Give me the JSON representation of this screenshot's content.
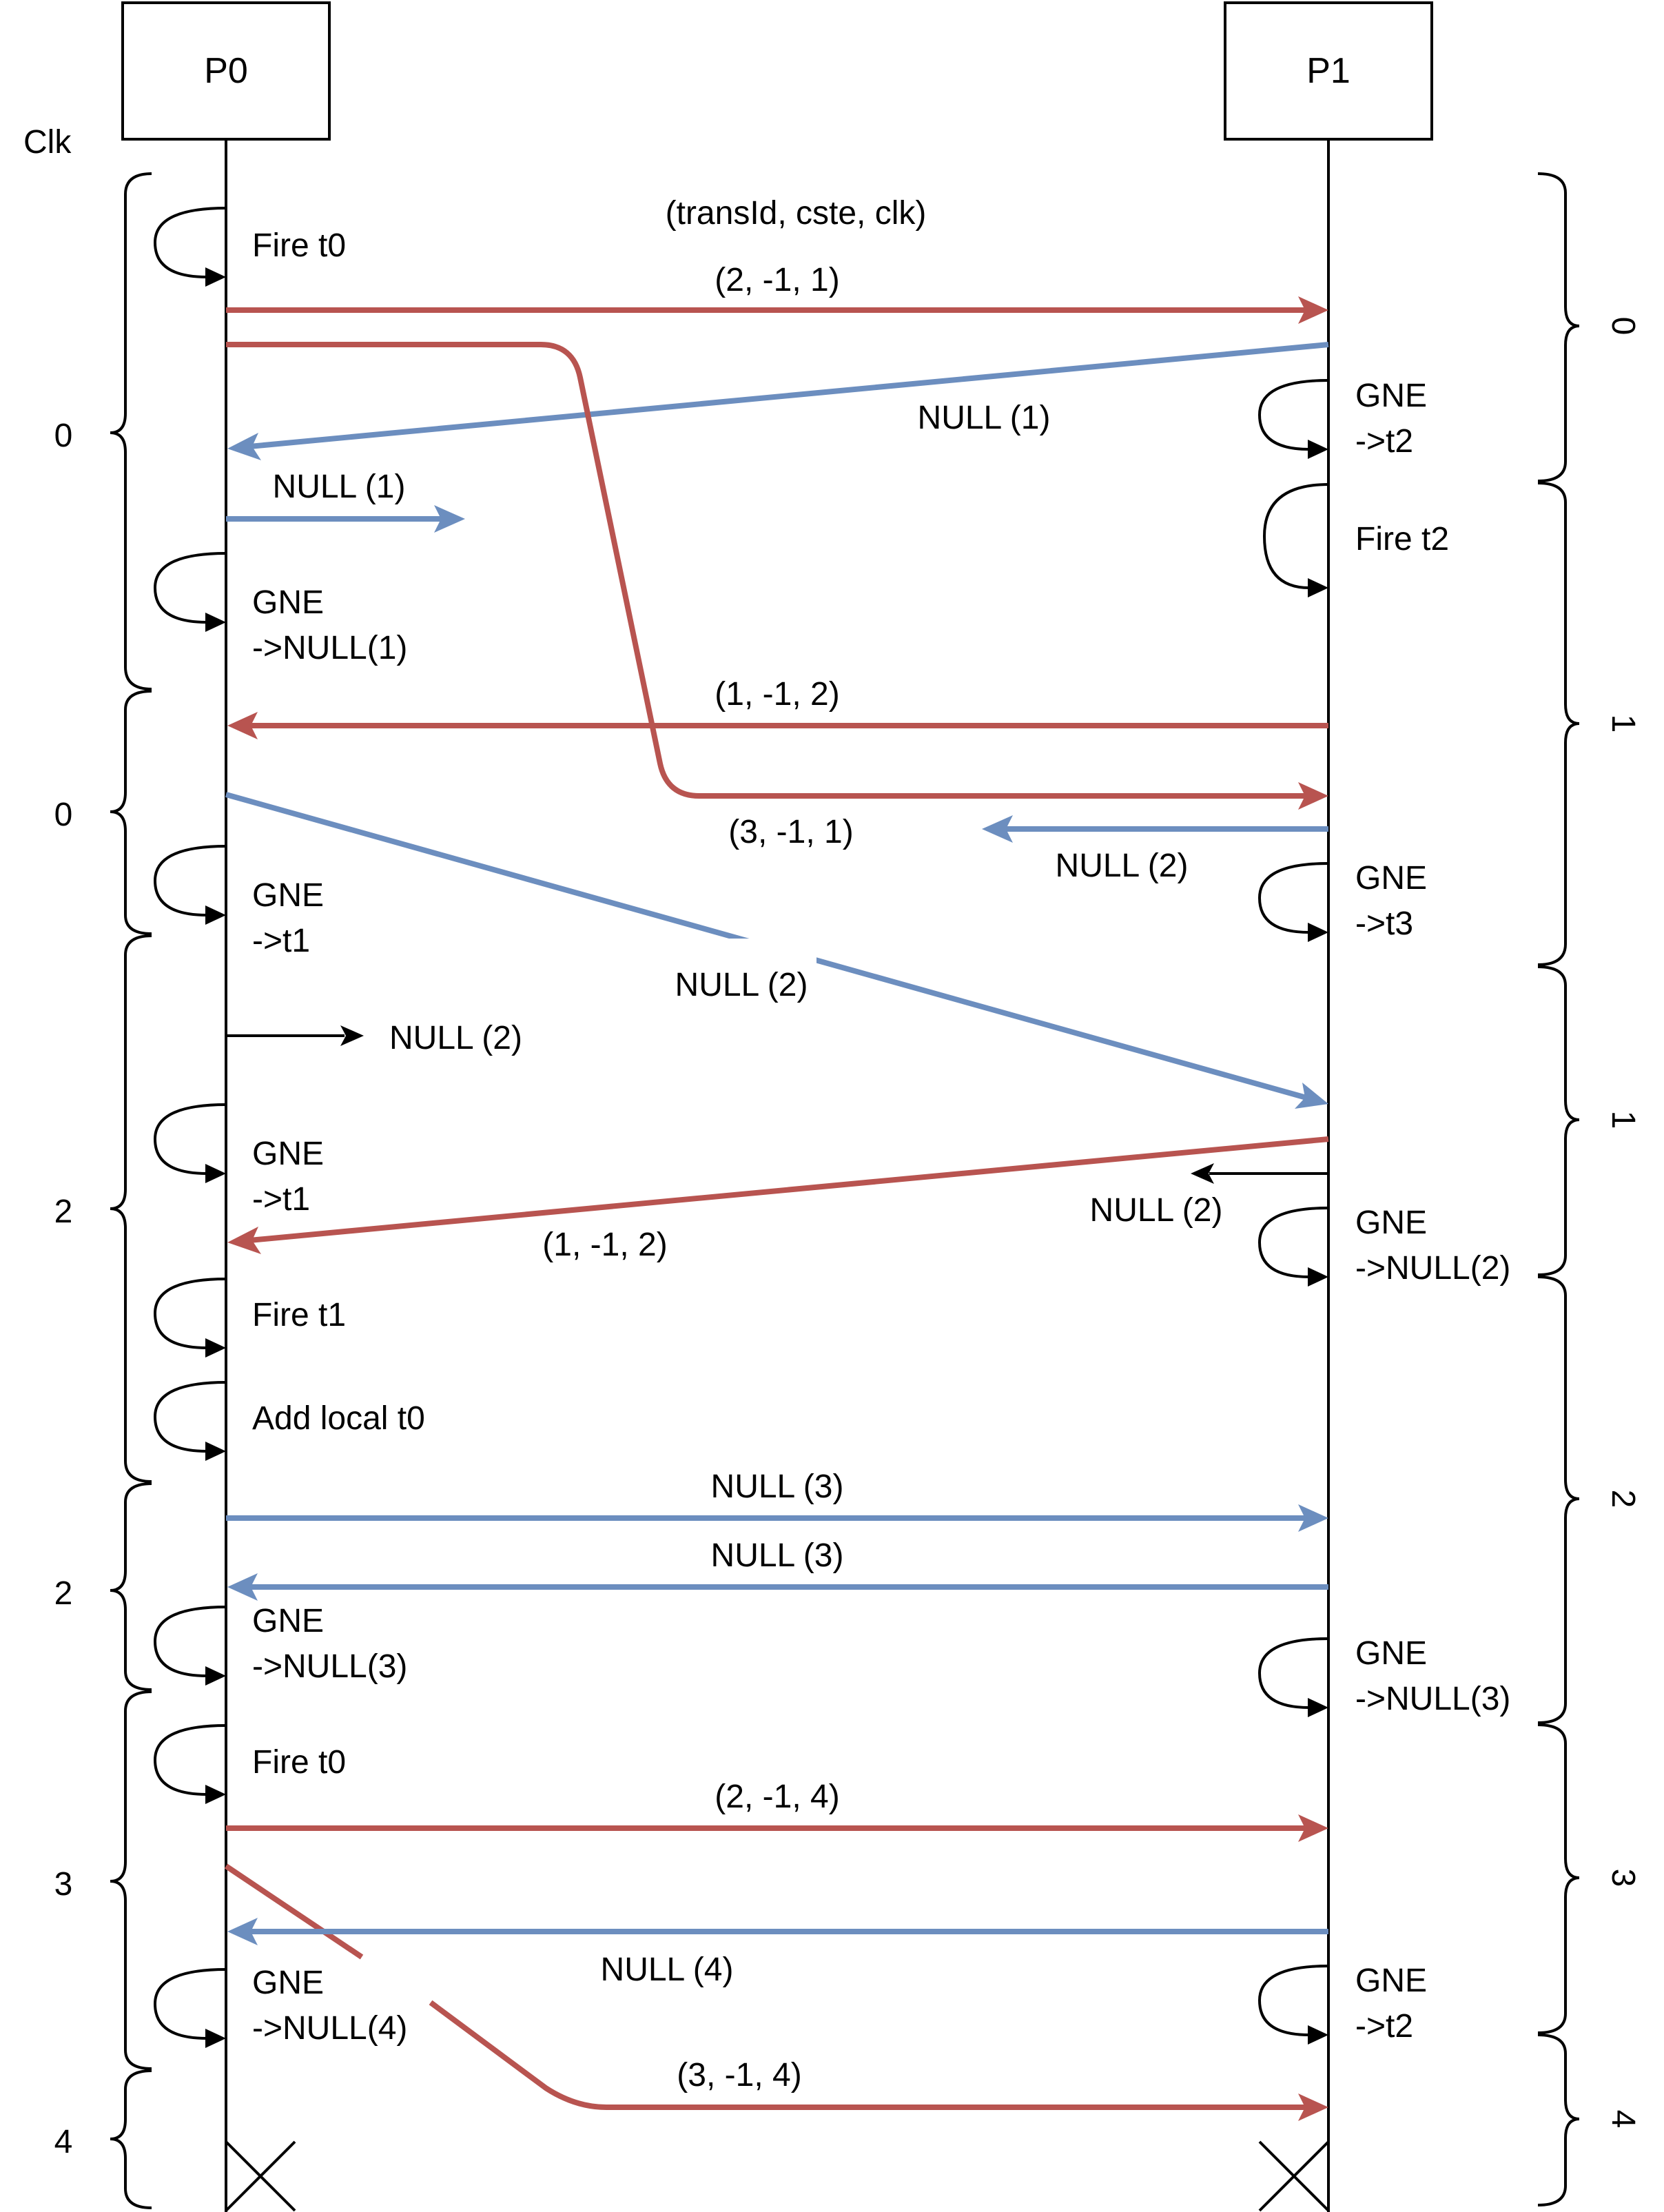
{
  "processes": {
    "p0": "P0",
    "p1": "P1"
  },
  "clk_label": "Clk",
  "header_label": "(transId, cste, clk)",
  "left_clocks": [
    "0",
    "0",
    "2",
    "2",
    "3",
    "4"
  ],
  "right_clocks": [
    "0",
    "1",
    "1",
    "2",
    "3",
    "4"
  ],
  "p0_actions": [
    [
      "Fire t0"
    ],
    [
      "GNE",
      "->NULL(1)"
    ],
    [
      "GNE",
      "->t1"
    ],
    [
      "GNE",
      "->t1"
    ],
    [
      "Fire t1"
    ],
    [
      "Add local t0"
    ],
    [
      "GNE",
      "->NULL(3)"
    ],
    [
      "Fire t0"
    ],
    [
      "GNE",
      "->NULL(4)"
    ]
  ],
  "p1_actions": [
    [
      "GNE",
      "->t2"
    ],
    [
      "Fire t2"
    ],
    [
      "GNE",
      "->t3"
    ],
    [
      "GNE",
      "->NULL(2)"
    ],
    [
      "GNE",
      "->NULL(3)"
    ],
    [
      "GNE",
      "->t2"
    ]
  ],
  "messages": [
    "(2, -1, 1)",
    "NULL (1)",
    "NULL (1)",
    "(1, -1, 2)",
    "(3, -1, 1)",
    "NULL (2)",
    "NULL (2)",
    "NULL (2)",
    "NULL (2)",
    "(1, -1, 2)",
    "NULL (3)",
    "NULL (3)",
    "(2, -1, 4)",
    "NULL (4)",
    "(3, -1, 4)"
  ],
  "colors": {
    "red_message": "#b85450",
    "blue_null": "#6c8ebf",
    "line": "#000000"
  }
}
